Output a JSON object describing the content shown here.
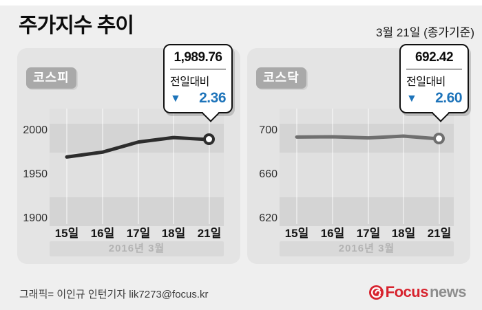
{
  "header": {
    "title": "주가지수 추이",
    "date_note": "3월 21일 (종가기준)"
  },
  "chart_data": [
    {
      "type": "line",
      "name": "KOSPI",
      "title": "코스피",
      "badge": "코스피",
      "x": [
        "15일",
        "16일",
        "17일",
        "18일",
        "21일"
      ],
      "values": [
        1969.97,
        1975.57,
        1987.01,
        1992.12,
        1989.76
      ],
      "y_ticks": [
        2000,
        1950,
        1900
      ],
      "ylim": [
        1890,
        2010
      ],
      "x_period_label": "2016년 3월",
      "line_color": "#2d2d2d",
      "grid": "vertical",
      "legend": "none",
      "callout": {
        "value": "1,989.76",
        "label": "전일대비",
        "arrow": "▼",
        "change": "2.36",
        "direction": "down"
      }
    },
    {
      "type": "line",
      "name": "KOSDAQ",
      "title": "코스닥",
      "badge": "코스닥",
      "x": [
        "15일",
        "16일",
        "17일",
        "18일",
        "21일"
      ],
      "values": [
        694.1,
        694.4,
        693.4,
        695.02,
        692.42
      ],
      "y_ticks": [
        700,
        660,
        620
      ],
      "ylim": [
        612,
        708
      ],
      "x_period_label": "2016년 3월",
      "line_color": "#6f6f6f",
      "grid": "vertical",
      "legend": "none",
      "callout": {
        "value": "692.42",
        "label": "전일대비",
        "arrow": "▼",
        "change": "2.60",
        "direction": "down"
      }
    }
  ],
  "footer": {
    "credit": "그래픽= 이인규 인턴기자 lik7273@focus.kr",
    "logo": {
      "icon": "focusnews-swirl-icon",
      "brand_first": "Focus",
      "brand_second": "news"
    }
  },
  "colors": {
    "down_blue": "#1e74ba",
    "logo_red": "#d7232e",
    "logo_gray": "#8d8d8d",
    "kospi_line": "#2d2d2d",
    "kosdaq_line": "#6f6f6f",
    "panel_bg": "#e4e4e4",
    "page_bg": "#efefef"
  }
}
